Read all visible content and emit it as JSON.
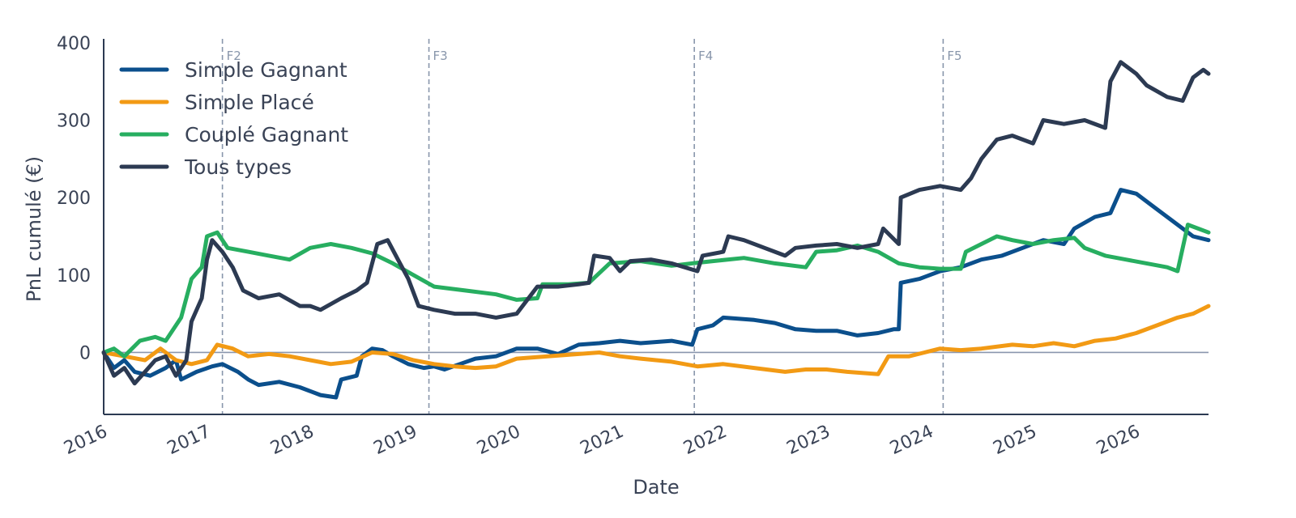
{
  "chart_data": {
    "type": "line",
    "title": "",
    "xlabel": "Date",
    "ylabel": "PnL cumulé (€)",
    "xlim": [
      2016.0,
      2026.7
    ],
    "ylim": [
      -80,
      405
    ],
    "x_ticks": [
      2016,
      2017,
      2018,
      2019,
      2020,
      2021,
      2022,
      2023,
      2024,
      2025,
      2026
    ],
    "y_ticks": [
      0,
      100,
      200,
      300,
      400
    ],
    "zero_line": 0,
    "grid": false,
    "legend": "top-left",
    "markers": [
      {
        "label": "F2",
        "x": 2017.15
      },
      {
        "label": "F3",
        "x": 2019.15
      },
      {
        "label": "F4",
        "x": 2021.72
      },
      {
        "label": "F5",
        "x": 2024.13
      }
    ],
    "series": [
      {
        "name": "Simple Gagnant",
        "color": "#0b4f8c",
        "points": [
          [
            2016.0,
            0
          ],
          [
            2016.1,
            -20
          ],
          [
            2016.2,
            -10
          ],
          [
            2016.3,
            -25
          ],
          [
            2016.45,
            -30
          ],
          [
            2016.6,
            -20
          ],
          [
            2016.7,
            -10
          ],
          [
            2016.75,
            -35
          ],
          [
            2016.9,
            -25
          ],
          [
            2017.05,
            -18
          ],
          [
            2017.15,
            -15
          ],
          [
            2017.3,
            -25
          ],
          [
            2017.4,
            -35
          ],
          [
            2017.5,
            -42
          ],
          [
            2017.7,
            -38
          ],
          [
            2017.9,
            -45
          ],
          [
            2018.0,
            -50
          ],
          [
            2018.1,
            -55
          ],
          [
            2018.25,
            -58
          ],
          [
            2018.3,
            -35
          ],
          [
            2018.45,
            -30
          ],
          [
            2018.5,
            -5
          ],
          [
            2018.6,
            5
          ],
          [
            2018.7,
            3
          ],
          [
            2018.8,
            -5
          ],
          [
            2018.95,
            -15
          ],
          [
            2019.1,
            -20
          ],
          [
            2019.2,
            -18
          ],
          [
            2019.3,
            -22
          ],
          [
            2019.45,
            -15
          ],
          [
            2019.6,
            -8
          ],
          [
            2019.8,
            -5
          ],
          [
            2020.0,
            5
          ],
          [
            2020.2,
            5
          ],
          [
            2020.4,
            -2
          ],
          [
            2020.6,
            10
          ],
          [
            2020.8,
            12
          ],
          [
            2021.0,
            15
          ],
          [
            2021.2,
            12
          ],
          [
            2021.5,
            15
          ],
          [
            2021.7,
            10
          ],
          [
            2021.75,
            30
          ],
          [
            2021.9,
            35
          ],
          [
            2022.0,
            45
          ],
          [
            2022.3,
            42
          ],
          [
            2022.5,
            38
          ],
          [
            2022.7,
            30
          ],
          [
            2022.9,
            28
          ],
          [
            2023.1,
            28
          ],
          [
            2023.3,
            22
          ],
          [
            2023.5,
            25
          ],
          [
            2023.65,
            30
          ],
          [
            2023.7,
            30
          ],
          [
            2023.72,
            90
          ],
          [
            2023.9,
            95
          ],
          [
            2024.1,
            105
          ],
          [
            2024.3,
            110
          ],
          [
            2024.5,
            120
          ],
          [
            2024.7,
            125
          ],
          [
            2024.9,
            135
          ],
          [
            2025.1,
            145
          ],
          [
            2025.3,
            140
          ],
          [
            2025.4,
            160
          ],
          [
            2025.6,
            175
          ],
          [
            2025.75,
            180
          ],
          [
            2025.85,
            210
          ],
          [
            2026.0,
            205
          ],
          [
            2026.2,
            185
          ],
          [
            2026.4,
            165
          ],
          [
            2026.55,
            150
          ],
          [
            2026.7,
            145
          ]
        ]
      },
      {
        "name": "Simple Placé",
        "color": "#f29a14",
        "points": [
          [
            2016.0,
            0
          ],
          [
            2016.2,
            -5
          ],
          [
            2016.4,
            -10
          ],
          [
            2016.55,
            5
          ],
          [
            2016.7,
            -10
          ],
          [
            2016.85,
            -15
          ],
          [
            2017.0,
            -10
          ],
          [
            2017.1,
            10
          ],
          [
            2017.25,
            5
          ],
          [
            2017.4,
            -5
          ],
          [
            2017.6,
            -2
          ],
          [
            2017.8,
            -5
          ],
          [
            2018.0,
            -10
          ],
          [
            2018.2,
            -15
          ],
          [
            2018.4,
            -12
          ],
          [
            2018.6,
            0
          ],
          [
            2018.8,
            -2
          ],
          [
            2019.0,
            -10
          ],
          [
            2019.2,
            -15
          ],
          [
            2019.4,
            -18
          ],
          [
            2019.6,
            -20
          ],
          [
            2019.8,
            -18
          ],
          [
            2020.0,
            -8
          ],
          [
            2020.3,
            -5
          ],
          [
            2020.6,
            -2
          ],
          [
            2020.8,
            0
          ],
          [
            2021.0,
            -5
          ],
          [
            2021.2,
            -8
          ],
          [
            2021.5,
            -12
          ],
          [
            2021.75,
            -18
          ],
          [
            2022.0,
            -15
          ],
          [
            2022.3,
            -20
          ],
          [
            2022.6,
            -25
          ],
          [
            2022.8,
            -22
          ],
          [
            2023.0,
            -22
          ],
          [
            2023.2,
            -25
          ],
          [
            2023.5,
            -28
          ],
          [
            2023.6,
            -5
          ],
          [
            2023.8,
            -5
          ],
          [
            2023.95,
            0
          ],
          [
            2024.1,
            5
          ],
          [
            2024.3,
            3
          ],
          [
            2024.5,
            5
          ],
          [
            2024.8,
            10
          ],
          [
            2025.0,
            8
          ],
          [
            2025.2,
            12
          ],
          [
            2025.4,
            8
          ],
          [
            2025.6,
            15
          ],
          [
            2025.8,
            18
          ],
          [
            2026.0,
            25
          ],
          [
            2026.2,
            35
          ],
          [
            2026.4,
            45
          ],
          [
            2026.55,
            50
          ],
          [
            2026.7,
            60
          ]
        ]
      },
      {
        "name": "Couplé Gagnant",
        "color": "#27ae60",
        "points": [
          [
            2016.0,
            0
          ],
          [
            2016.1,
            5
          ],
          [
            2016.2,
            -5
          ],
          [
            2016.35,
            15
          ],
          [
            2016.5,
            20
          ],
          [
            2016.6,
            15
          ],
          [
            2016.75,
            45
          ],
          [
            2016.85,
            95
          ],
          [
            2016.95,
            110
          ],
          [
            2017.0,
            150
          ],
          [
            2017.1,
            155
          ],
          [
            2017.2,
            135
          ],
          [
            2017.4,
            130
          ],
          [
            2017.6,
            125
          ],
          [
            2017.8,
            120
          ],
          [
            2018.0,
            135
          ],
          [
            2018.2,
            140
          ],
          [
            2018.4,
            135
          ],
          [
            2018.6,
            128
          ],
          [
            2018.8,
            115
          ],
          [
            2019.0,
            100
          ],
          [
            2019.2,
            85
          ],
          [
            2019.5,
            80
          ],
          [
            2019.8,
            75
          ],
          [
            2020.0,
            68
          ],
          [
            2020.2,
            70
          ],
          [
            2020.25,
            88
          ],
          [
            2020.5,
            88
          ],
          [
            2020.7,
            90
          ],
          [
            2020.9,
            115
          ],
          [
            2021.2,
            118
          ],
          [
            2021.5,
            112
          ],
          [
            2021.7,
            115
          ],
          [
            2021.9,
            118
          ],
          [
            2022.2,
            122
          ],
          [
            2022.5,
            115
          ],
          [
            2022.8,
            110
          ],
          [
            2022.9,
            130
          ],
          [
            2023.1,
            132
          ],
          [
            2023.3,
            138
          ],
          [
            2023.5,
            130
          ],
          [
            2023.7,
            115
          ],
          [
            2023.9,
            110
          ],
          [
            2024.1,
            108
          ],
          [
            2024.3,
            108
          ],
          [
            2024.35,
            130
          ],
          [
            2024.5,
            140
          ],
          [
            2024.65,
            150
          ],
          [
            2024.8,
            145
          ],
          [
            2025.0,
            140
          ],
          [
            2025.2,
            145
          ],
          [
            2025.4,
            148
          ],
          [
            2025.5,
            135
          ],
          [
            2025.7,
            125
          ],
          [
            2025.9,
            120
          ],
          [
            2026.1,
            115
          ],
          [
            2026.3,
            110
          ],
          [
            2026.4,
            105
          ],
          [
            2026.5,
            165
          ],
          [
            2026.7,
            155
          ]
        ]
      },
      {
        "name": "Tous types",
        "color": "#2c3a52",
        "points": [
          [
            2016.0,
            0
          ],
          [
            2016.1,
            -30
          ],
          [
            2016.2,
            -20
          ],
          [
            2016.3,
            -40
          ],
          [
            2016.4,
            -25
          ],
          [
            2016.5,
            -10
          ],
          [
            2016.6,
            -5
          ],
          [
            2016.7,
            -30
          ],
          [
            2016.8,
            -10
          ],
          [
            2016.85,
            40
          ],
          [
            2016.95,
            70
          ],
          [
            2017.0,
            120
          ],
          [
            2017.05,
            145
          ],
          [
            2017.15,
            130
          ],
          [
            2017.25,
            110
          ],
          [
            2017.35,
            80
          ],
          [
            2017.5,
            70
          ],
          [
            2017.7,
            75
          ],
          [
            2017.9,
            60
          ],
          [
            2018.0,
            60
          ],
          [
            2018.1,
            55
          ],
          [
            2018.3,
            70
          ],
          [
            2018.45,
            80
          ],
          [
            2018.55,
            90
          ],
          [
            2018.65,
            140
          ],
          [
            2018.75,
            145
          ],
          [
            2018.85,
            120
          ],
          [
            2018.95,
            95
          ],
          [
            2019.05,
            60
          ],
          [
            2019.2,
            55
          ],
          [
            2019.4,
            50
          ],
          [
            2019.6,
            50
          ],
          [
            2019.8,
            45
          ],
          [
            2020.0,
            50
          ],
          [
            2020.2,
            85
          ],
          [
            2020.4,
            85
          ],
          [
            2020.6,
            88
          ],
          [
            2020.7,
            90
          ],
          [
            2020.75,
            125
          ],
          [
            2020.9,
            122
          ],
          [
            2021.0,
            105
          ],
          [
            2021.1,
            118
          ],
          [
            2021.3,
            120
          ],
          [
            2021.5,
            115
          ],
          [
            2021.75,
            105
          ],
          [
            2021.8,
            125
          ],
          [
            2022.0,
            130
          ],
          [
            2022.05,
            150
          ],
          [
            2022.2,
            145
          ],
          [
            2022.4,
            135
          ],
          [
            2022.6,
            125
          ],
          [
            2022.7,
            135
          ],
          [
            2022.9,
            138
          ],
          [
            2023.1,
            140
          ],
          [
            2023.3,
            135
          ],
          [
            2023.5,
            140
          ],
          [
            2023.55,
            160
          ],
          [
            2023.7,
            140
          ],
          [
            2023.72,
            200
          ],
          [
            2023.9,
            210
          ],
          [
            2024.1,
            215
          ],
          [
            2024.3,
            210
          ],
          [
            2024.4,
            225
          ],
          [
            2024.5,
            250
          ],
          [
            2024.65,
            275
          ],
          [
            2024.8,
            280
          ],
          [
            2025.0,
            270
          ],
          [
            2025.1,
            300
          ],
          [
            2025.3,
            295
          ],
          [
            2025.5,
            300
          ],
          [
            2025.7,
            290
          ],
          [
            2025.75,
            350
          ],
          [
            2025.85,
            375
          ],
          [
            2026.0,
            360
          ],
          [
            2026.1,
            345
          ],
          [
            2026.3,
            330
          ],
          [
            2026.45,
            325
          ],
          [
            2026.55,
            355
          ],
          [
            2026.65,
            365
          ],
          [
            2026.7,
            360
          ]
        ]
      }
    ]
  }
}
